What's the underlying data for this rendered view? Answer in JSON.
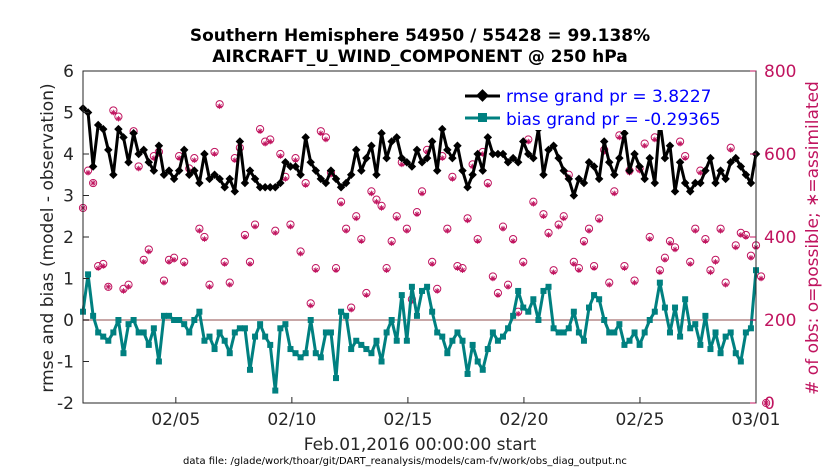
{
  "chart_data": {
    "type": "line",
    "title_line1": "Southern Hemisphere 54950 / 55428 = 99.138%",
    "title_line2": "AIRCRAFT_U_WIND_COMPONENT @ 250 hPa",
    "xlabel": "Feb.01,2016 00:00:00 start",
    "ylabel": "rmse and bias (model - observation)",
    "ylabel_right": "# of obs: o=possible; ∗=assimilated",
    "xlim": [
      0,
      29
    ],
    "ylim": [
      -2,
      6
    ],
    "ylim_right": [
      0,
      800
    ],
    "x_ticks": [
      {
        "x": 4,
        "label": "02/05"
      },
      {
        "x": 9,
        "label": "02/10"
      },
      {
        "x": 14,
        "label": "02/15"
      },
      {
        "x": 19,
        "label": "02/20"
      },
      {
        "x": 24,
        "label": "02/25"
      },
      {
        "x": 29,
        "label": "03/01"
      }
    ],
    "y_ticks": [
      {
        "v": -2,
        "label": "-2"
      },
      {
        "v": -1,
        "label": "-1"
      },
      {
        "v": 0,
        "label": "0"
      },
      {
        "v": 1,
        "label": "1"
      },
      {
        "v": 2,
        "label": "2"
      },
      {
        "v": 3,
        "label": "3"
      },
      {
        "v": 4,
        "label": "4"
      },
      {
        "v": 5,
        "label": "5"
      },
      {
        "v": 6,
        "label": "6"
      }
    ],
    "y_ticks_right": [
      {
        "v": 0,
        "label": "0"
      },
      {
        "v": 200,
        "label": "200"
      },
      {
        "v": 400,
        "label": "400"
      },
      {
        "v": 600,
        "label": "600"
      },
      {
        "v": 800,
        "label": "800"
      }
    ],
    "series": [
      {
        "name": "rmse",
        "legend": "rmse grand pr = 3.8227",
        "color": "#000000",
        "values": [
          5.1,
          5.0,
          3.7,
          4.7,
          4.6,
          4.1,
          3.5,
          4.6,
          4.4,
          3.8,
          4.5,
          4.0,
          4.1,
          3.8,
          3.6,
          4.2,
          3.5,
          3.6,
          3.4,
          3.6,
          4.1,
          3.5,
          3.6,
          3.3,
          4.0,
          3.4,
          3.5,
          3.4,
          3.2,
          3.4,
          3.1,
          4.3,
          3.3,
          3.6,
          3.4,
          3.2,
          3.2,
          3.2,
          3.2,
          3.3,
          3.8,
          3.7,
          3.7,
          3.5,
          4.4,
          3.8,
          3.6,
          3.4,
          3.3,
          3.6,
          3.4,
          3.2,
          3.3,
          3.5,
          4.1,
          3.6,
          3.9,
          4.2,
          3.5,
          4.5,
          3.9,
          4.3,
          4.4,
          3.9,
          3.8,
          3.7,
          4.1,
          3.8,
          3.9,
          4.3,
          3.6,
          4.6,
          4.1,
          3.9,
          4.2,
          3.6,
          3.2,
          3.5,
          4.0,
          3.6,
          4.4,
          4.0,
          4.0,
          4.0,
          3.8,
          3.9,
          3.8,
          4.3,
          4.0,
          3.9,
          4.6,
          3.5,
          4.1,
          4.2,
          3.9,
          3.6,
          3.4,
          3.0,
          3.4,
          3.3,
          3.8,
          3.7,
          3.4,
          4.3,
          3.8,
          3.5,
          3.9,
          4.5,
          3.6,
          4.0,
          3.7,
          3.4,
          3.9,
          3.3,
          4.8,
          3.9,
          4.2,
          3.1,
          3.8,
          3.3,
          3.1,
          3.3,
          3.3,
          3.6,
          3.9,
          3.3,
          3.6,
          3.4,
          3.8,
          3.9,
          3.7,
          3.5,
          3.3,
          4.0
        ]
      },
      {
        "name": "bias",
        "legend": "bias grand pr = -0.29365",
        "color": "#008080",
        "values": [
          0.2,
          1.1,
          0.1,
          -0.3,
          -0.4,
          -0.5,
          -0.3,
          0.0,
          -0.8,
          -0.1,
          0.0,
          -0.3,
          -0.3,
          -0.6,
          -0.2,
          -1.0,
          0.1,
          0.1,
          0.0,
          0.0,
          -0.1,
          -0.3,
          0.0,
          0.2,
          -0.5,
          -0.4,
          -0.7,
          -0.3,
          -0.5,
          -0.8,
          -0.3,
          -0.2,
          -0.2,
          -1.2,
          -0.4,
          -0.1,
          -0.4,
          -0.6,
          -1.7,
          -0.2,
          -0.1,
          -0.7,
          -0.8,
          -0.9,
          -0.8,
          0.0,
          -0.8,
          -0.9,
          -0.3,
          -0.3,
          -1.4,
          0.2,
          0.1,
          -0.7,
          -0.5,
          -0.6,
          -0.7,
          -0.8,
          -0.5,
          -1.0,
          -0.3,
          0.0,
          -0.5,
          0.6,
          -0.5,
          0.8,
          0.1,
          0.7,
          0.8,
          0.2,
          -0.3,
          -0.4,
          -0.8,
          -0.5,
          -0.3,
          -0.5,
          -1.3,
          -0.6,
          -1.0,
          -1.2,
          -0.7,
          -0.3,
          -0.5,
          -0.4,
          -0.2,
          0.1,
          0.7,
          0.3,
          0.2,
          0.5,
          0.0,
          0.7,
          0.8,
          -0.2,
          -0.3,
          -0.3,
          -0.2,
          0.2,
          -0.3,
          -0.5,
          0.3,
          0.6,
          0.5,
          0.0,
          -0.3,
          -0.3,
          -0.1,
          -0.6,
          -0.5,
          -0.3,
          -0.6,
          -0.3,
          0.0,
          0.2,
          0.9,
          0.3,
          -0.3,
          0.3,
          -0.4,
          0.5,
          -0.2,
          -0.1,
          -0.6,
          0.1,
          -0.7,
          -0.3,
          -0.8,
          -0.4,
          -0.3,
          -0.8,
          -1.0,
          -0.3,
          -0.2,
          1.2
        ]
      }
    ],
    "obs_counts": {
      "color": "#c0145f",
      "possible": [
        470,
        560,
        530,
        330,
        335,
        280,
        705,
        690,
        275,
        285,
        655,
        570,
        345,
        370,
        595,
        605,
        295,
        345,
        350,
        595,
        340,
        565,
        590,
        420,
        400,
        285,
        605,
        720,
        340,
        290,
        590,
        615,
        405,
        340,
        430,
        660,
        630,
        635,
        415,
        600,
        545,
        430,
        590,
        365,
        530,
        240,
        325,
        655,
        640,
        555,
        325,
        485,
        420,
        230,
        450,
        395,
        265,
        510,
        490,
        475,
        325,
        390,
        450,
        580,
        420,
        250,
        460,
        510,
        610,
        340,
        275,
        595,
        420,
        545,
        330,
        325,
        445,
        575,
        395,
        605,
        530,
        305,
        265,
        425,
        285,
        395,
        220,
        340,
        635,
        485,
        680,
        455,
        410,
        320,
        430,
        450,
        550,
        340,
        325,
        390,
        420,
        330,
        445,
        610,
        290,
        510,
        645,
        330,
        560,
        295,
        565,
        625,
        400,
        640,
        320,
        350,
        390,
        375,
        630,
        595,
        340,
        420,
        560,
        395,
        320,
        345,
        420,
        290,
        615,
        380,
        410,
        405,
        355,
        380,
        305,
        0
      ],
      "assimilated": [
        470,
        555,
        530,
        325,
        330,
        280,
        700,
        685,
        270,
        280,
        650,
        565,
        340,
        365,
        590,
        600,
        290,
        340,
        345,
        590,
        335,
        560,
        585,
        415,
        395,
        280,
        600,
        715,
        335,
        285,
        585,
        610,
        400,
        335,
        425,
        655,
        625,
        630,
        410,
        595,
        540,
        425,
        585,
        360,
        525,
        235,
        320,
        650,
        635,
        550,
        320,
        480,
        415,
        225,
        445,
        390,
        260,
        505,
        485,
        470,
        320,
        385,
        445,
        575,
        415,
        245,
        455,
        505,
        605,
        335,
        270,
        590,
        415,
        540,
        325,
        320,
        440,
        570,
        390,
        600,
        525,
        300,
        260,
        420,
        280,
        390,
        215,
        335,
        630,
        480,
        675,
        450,
        405,
        315,
        425,
        445,
        545,
        335,
        320,
        385,
        415,
        325,
        440,
        605,
        285,
        505,
        640,
        325,
        555,
        290,
        560,
        620,
        395,
        635,
        315,
        345,
        385,
        370,
        625,
        590,
        335,
        415,
        555,
        390,
        315,
        340,
        415,
        285,
        610,
        375,
        405,
        400,
        350,
        375,
        300,
        0
      ]
    },
    "footnote": "data file: /glade/work/thoar/git/DART_reanalysis/models/cam-fv/work/obs_diag_output.nc"
  }
}
